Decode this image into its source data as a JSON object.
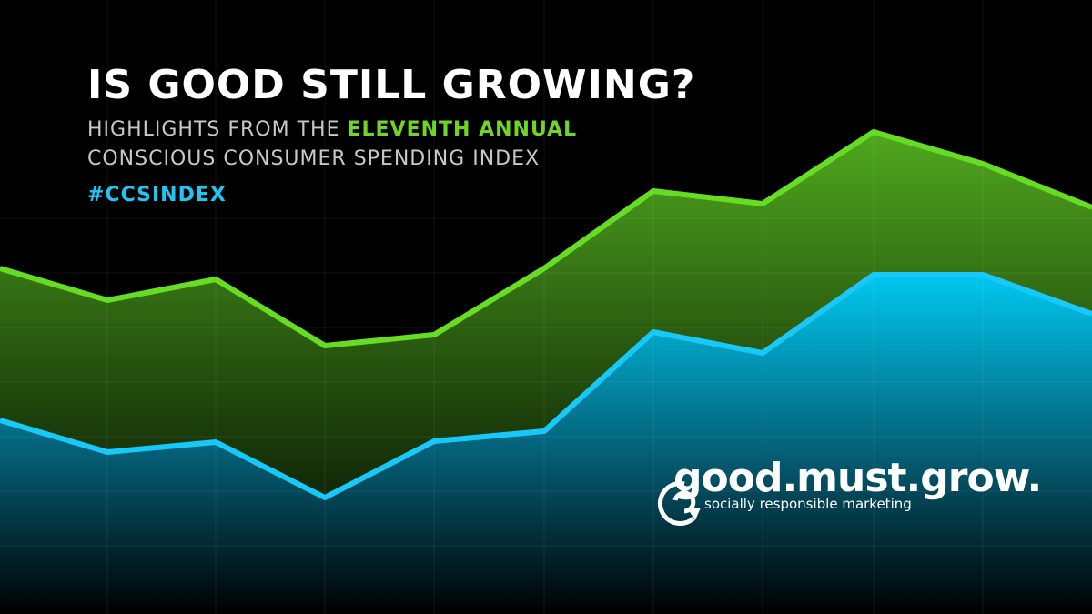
{
  "header": {
    "title": "IS GOOD STILL GROWING?",
    "subtitle_lead": "HIGHLIGHTS FROM THE",
    "subtitle_highlight": "ELEVENTH ANNUAL",
    "subtitle_line2": "CONSCIOUS CONSUMER SPENDING INDEX",
    "hashtag": "#CCSINDEX"
  },
  "logo": {
    "name": "good.must.grow.",
    "tagline": "socially responsible marketing"
  }
}
